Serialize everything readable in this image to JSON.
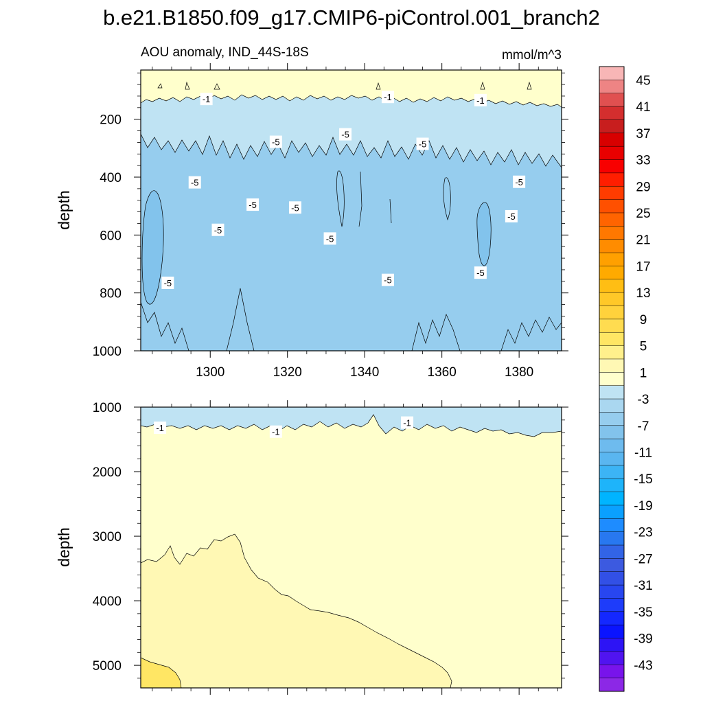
{
  "chart_data": {
    "type": "heatmap",
    "title": "b.e21.B1850.f09_g17.CMIP6-piControl.001_branch2",
    "panels": [
      {
        "name": "upper",
        "left_label": "AOU anomaly, IND_44S-18S",
        "right_label": "mmol/m^3",
        "ylabel": "depth",
        "xlim": [
          1282,
          1391
        ],
        "ylim": [
          1000,
          30
        ],
        "x_ticks": [
          1300,
          1320,
          1340,
          1360,
          1380
        ],
        "y_ticks": [
          200,
          400,
          600,
          800,
          1000
        ],
        "contour_labels": [
          {
            "text": "-1",
            "x": 1299,
            "y": 130
          },
          {
            "text": "-1",
            "x": 1346,
            "y": 123
          },
          {
            "text": "-1",
            "x": 1370,
            "y": 134
          },
          {
            "text": "-5",
            "x": 1317,
            "y": 278
          },
          {
            "text": "-5",
            "x": 1335,
            "y": 252
          },
          {
            "text": "-5",
            "x": 1355,
            "y": 285
          },
          {
            "text": "-5",
            "x": 1296,
            "y": 418
          },
          {
            "text": "-5",
            "x": 1380,
            "y": 416
          },
          {
            "text": "-5",
            "x": 1311,
            "y": 495
          },
          {
            "text": "-5",
            "x": 1322,
            "y": 505
          },
          {
            "text": "-5",
            "x": 1378,
            "y": 535
          },
          {
            "text": "-5",
            "x": 1302,
            "y": 582
          },
          {
            "text": "-5",
            "x": 1331,
            "y": 612
          },
          {
            "text": "-5",
            "x": 1346,
            "y": 755
          },
          {
            "text": "-5",
            "x": 1370,
            "y": 730
          },
          {
            "text": "-5",
            "x": 1289,
            "y": 765
          }
        ]
      },
      {
        "name": "lower",
        "ylabel": "depth",
        "xlim": [
          1282,
          1391
        ],
        "ylim": [
          5350,
          1000
        ],
        "y_ticks": [
          1000,
          2000,
          3000,
          4000,
          5000
        ],
        "contour_labels": [
          {
            "text": "-1",
            "x": 1287,
            "y": 1320
          },
          {
            "text": "-1",
            "x": 1317,
            "y": 1380
          },
          {
            "text": "-1",
            "x": 1351,
            "y": 1240
          }
        ]
      }
    ],
    "colorbar": {
      "labels": [
        "45",
        "41",
        "37",
        "33",
        "29",
        "25",
        "21",
        "17",
        "13",
        "9",
        "5",
        "1",
        "-3",
        "-7",
        "-11",
        "-15",
        "-19",
        "-23",
        "-27",
        "-31",
        "-35",
        "-39",
        "-43"
      ],
      "colors": [
        "#f8b6b6",
        "#ee8484",
        "#e05050",
        "#d42e2e",
        "#c81e1e",
        "#d80000",
        "#e80000",
        "#f80000",
        "#ff1e00",
        "#ff3c00",
        "#ff5000",
        "#ff6400",
        "#ff7800",
        "#ff8c00",
        "#ffa000",
        "#ffaa00",
        "#ffbe14",
        "#ffc828",
        "#ffd23c",
        "#ffdc50",
        "#ffe664",
        "#fff08c",
        "#fff8b4",
        "#ffffcc",
        "#bfe3f3",
        "#aad7f0",
        "#96cdee",
        "#82c3ec",
        "#6ebbee",
        "#5ab6f0",
        "#3cb4f5",
        "#1eb4fa",
        "#00b4ff",
        "#0aa0ff",
        "#1e8cff",
        "#2878f0",
        "#3264e6",
        "#3c5ae0",
        "#3250e6",
        "#2846f0",
        "#1e3cfa",
        "#1428ff",
        "#0a14ff",
        "#2d14f5",
        "#5014f0",
        "#7814eb",
        "#8c28e6"
      ]
    }
  }
}
